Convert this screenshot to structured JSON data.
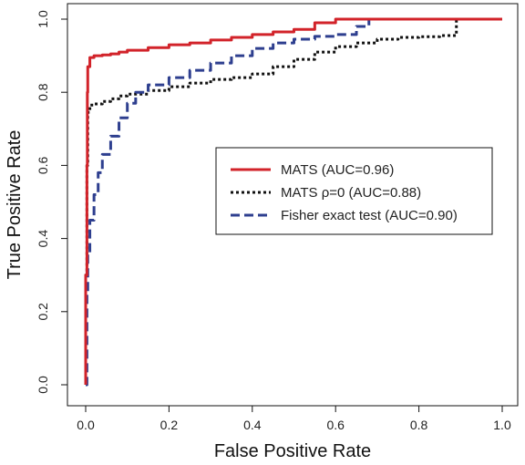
{
  "chart_data": {
    "type": "line",
    "title": "",
    "xlabel": "False Positive Rate",
    "ylabel": "True Positive Rate",
    "xlim": [
      0,
      1
    ],
    "ylim": [
      0,
      1
    ],
    "xticks": [
      "0.0",
      "0.2",
      "0.4",
      "0.6",
      "0.8",
      "1.0"
    ],
    "yticks": [
      "0.0",
      "0.2",
      "0.4",
      "0.6",
      "0.8",
      "1.0"
    ],
    "grid": false,
    "legend_position": "center-right",
    "series": [
      {
        "name": "MATS (AUC=0.96)",
        "color": "#d2232a",
        "dash": "solid",
        "points": [
          [
            0,
            0
          ],
          [
            0,
            0.3
          ],
          [
            0.003,
            0.6
          ],
          [
            0.004,
            0.8
          ],
          [
            0.005,
            0.87
          ],
          [
            0.01,
            0.895
          ],
          [
            0.02,
            0.9
          ],
          [
            0.04,
            0.902
          ],
          [
            0.06,
            0.905
          ],
          [
            0.08,
            0.91
          ],
          [
            0.1,
            0.915
          ],
          [
            0.15,
            0.922
          ],
          [
            0.2,
            0.93
          ],
          [
            0.25,
            0.935
          ],
          [
            0.3,
            0.943
          ],
          [
            0.35,
            0.95
          ],
          [
            0.4,
            0.958
          ],
          [
            0.45,
            0.965
          ],
          [
            0.5,
            0.972
          ],
          [
            0.55,
            0.99
          ],
          [
            0.6,
            1.0
          ],
          [
            1.0,
            1.0
          ]
        ]
      },
      {
        "name": "MATS ρ=0 (AUC=0.88)",
        "color": "#111111",
        "dash": "dotted",
        "points": [
          [
            0,
            0
          ],
          [
            0,
            0.3
          ],
          [
            0.003,
            0.6
          ],
          [
            0.005,
            0.745
          ],
          [
            0.01,
            0.765
          ],
          [
            0.02,
            0.768
          ],
          [
            0.04,
            0.775
          ],
          [
            0.06,
            0.782
          ],
          [
            0.08,
            0.79
          ],
          [
            0.1,
            0.795
          ],
          [
            0.15,
            0.805
          ],
          [
            0.2,
            0.815
          ],
          [
            0.25,
            0.825
          ],
          [
            0.3,
            0.835
          ],
          [
            0.35,
            0.84
          ],
          [
            0.4,
            0.85
          ],
          [
            0.45,
            0.87
          ],
          [
            0.5,
            0.89
          ],
          [
            0.55,
            0.91
          ],
          [
            0.6,
            0.925
          ],
          [
            0.65,
            0.935
          ],
          [
            0.7,
            0.945
          ],
          [
            0.75,
            0.95
          ],
          [
            0.8,
            0.952
          ],
          [
            0.85,
            0.955
          ],
          [
            0.89,
            0.958
          ],
          [
            0.89,
            1.0
          ],
          [
            1.0,
            1.0
          ]
        ]
      },
      {
        "name": "Fisher exact test (AUC=0.90)",
        "color": "#2e3f8f",
        "dash": "dashed",
        "points": [
          [
            0,
            0
          ],
          [
            0.003,
            0.25
          ],
          [
            0.005,
            0.36
          ],
          [
            0.01,
            0.45
          ],
          [
            0.02,
            0.52
          ],
          [
            0.03,
            0.58
          ],
          [
            0.04,
            0.63
          ],
          [
            0.06,
            0.68
          ],
          [
            0.08,
            0.73
          ],
          [
            0.1,
            0.77
          ],
          [
            0.12,
            0.8
          ],
          [
            0.15,
            0.82
          ],
          [
            0.2,
            0.84
          ],
          [
            0.25,
            0.86
          ],
          [
            0.3,
            0.88
          ],
          [
            0.35,
            0.9
          ],
          [
            0.4,
            0.92
          ],
          [
            0.45,
            0.935
          ],
          [
            0.5,
            0.945
          ],
          [
            0.55,
            0.953
          ],
          [
            0.6,
            0.958
          ],
          [
            0.65,
            0.98
          ],
          [
            0.68,
            1.0
          ],
          [
            1.0,
            1.0
          ]
        ]
      }
    ]
  },
  "legend": {
    "items": [
      {
        "label": "MATS (AUC=0.96)",
        "color": "#d2232a",
        "dash": "solid"
      },
      {
        "label": "MATS ρ=0 (AUC=0.88)",
        "color": "#111111",
        "dash": "dotted"
      },
      {
        "label": "Fisher exact test (AUC=0.90)",
        "color": "#2e3f8f",
        "dash": "dashed"
      }
    ]
  }
}
